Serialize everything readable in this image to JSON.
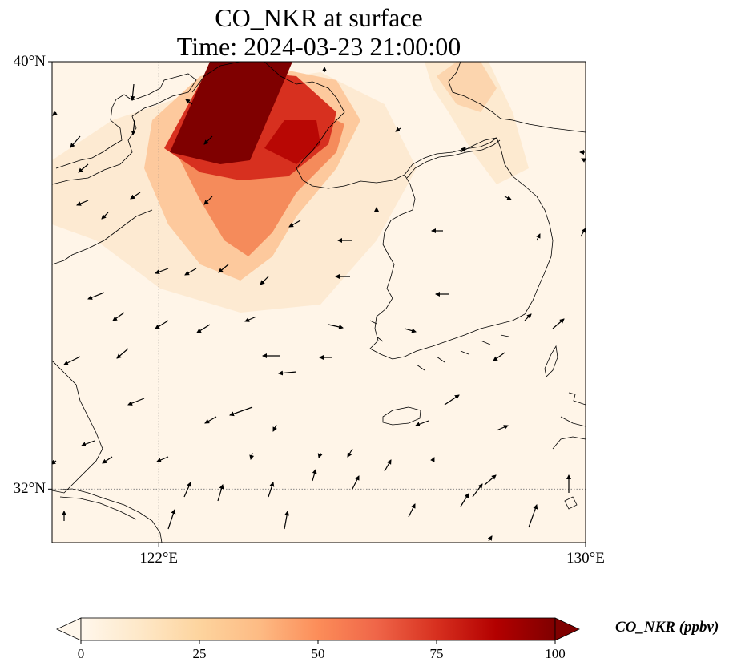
{
  "title": {
    "line1": "CO_NKR at surface",
    "line2": "Time: 2024-03-23 21:00:00"
  },
  "map": {
    "lon_range": [
      120,
      130
    ],
    "lat_range": [
      31,
      40
    ],
    "lat_ticks": [
      {
        "value": 40,
        "label": "40°N"
      },
      {
        "value": 32,
        "label": "32°N"
      }
    ],
    "lon_ticks": [
      {
        "value": 122,
        "label": "122°E"
      },
      {
        "value": 130,
        "label": "130°E"
      }
    ],
    "gridlines": {
      "lat": [
        32
      ],
      "lon": [
        122
      ],
      "style": "dotted"
    },
    "wind_vectors": "shown"
  },
  "colorbar": {
    "label": "CO_NKR (ppbv)",
    "min": 0,
    "max": 100,
    "extend": "both",
    "colormap": "OrRd",
    "ticks": [
      {
        "value": 0,
        "label": "0"
      },
      {
        "value": 25,
        "label": "25"
      },
      {
        "value": 50,
        "label": "50"
      },
      {
        "value": 75,
        "label": "75"
      },
      {
        "value": 100,
        "label": "100"
      }
    ],
    "stops": [
      "#fff7ec",
      "#fee8c8",
      "#fdd49e",
      "#fdbb84",
      "#fc8d59",
      "#ef6548",
      "#d7301f",
      "#b30000",
      "#7f0000"
    ]
  }
}
